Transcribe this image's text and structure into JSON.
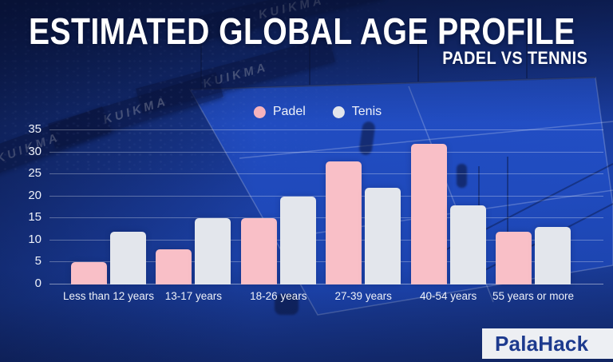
{
  "title": "ESTIMATED GLOBAL AGE PROFILE",
  "subtitle": "PADEL VS TENNIS",
  "legend": [
    {
      "label": "Padel",
      "color": "#f6b3bd"
    },
    {
      "label": "Tenis",
      "color": "#e2e5eb"
    }
  ],
  "chart_data": {
    "type": "bar",
    "categories": [
      "Less than 12 years",
      "13-17 years",
      "18-26 years",
      "27-39 years",
      "40-54 years",
      "55 years or more"
    ],
    "series": [
      {
        "name": "Padel",
        "color": "#f9bfc7",
        "values": [
          5,
          8,
          15,
          28,
          32,
          12
        ]
      },
      {
        "name": "Tenis",
        "color": "#e3e6ec",
        "values": [
          12,
          15,
          20,
          22,
          18,
          13
        ]
      }
    ],
    "title": "Estimated global age profile — Padel vs Tennis",
    "xlabel": "",
    "ylabel": "",
    "ylim": [
      0,
      35
    ],
    "yticks": [
      0,
      5,
      10,
      15,
      20,
      25,
      30,
      35
    ],
    "grid": true,
    "legend_position": "top-center"
  },
  "background": {
    "banner_text": "KUIKMA"
  },
  "logo": {
    "prefix": "Pala",
    "suffix": "Hack"
  }
}
